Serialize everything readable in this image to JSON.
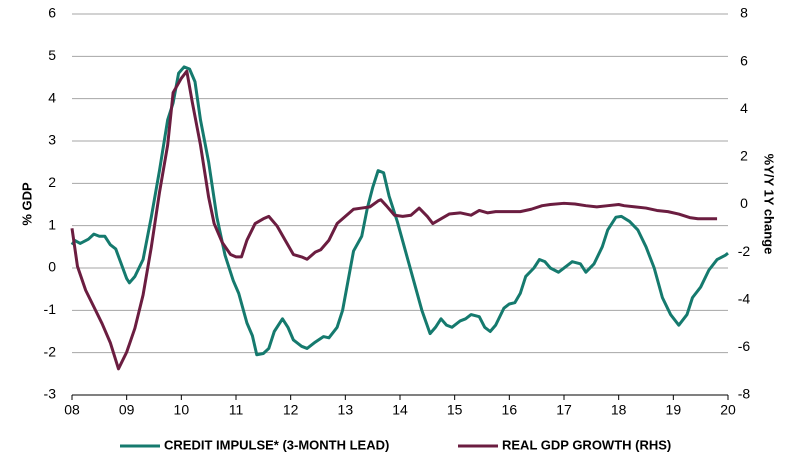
{
  "chart_data": {
    "type": "line",
    "ylabel": "% GDP",
    "y2label": "%Y/Y 1Y change",
    "xlim": [
      2008,
      2020
    ],
    "xticks": [
      {
        "value": 2008,
        "label": "08"
      },
      {
        "value": 2009,
        "label": "09"
      },
      {
        "value": 2010,
        "label": "10"
      },
      {
        "value": 2011,
        "label": "11"
      },
      {
        "value": 2012,
        "label": "12"
      },
      {
        "value": 2013,
        "label": "13"
      },
      {
        "value": 2014,
        "label": "14"
      },
      {
        "value": 2015,
        "label": "15"
      },
      {
        "value": 2016,
        "label": "16"
      },
      {
        "value": 2017,
        "label": "17"
      },
      {
        "value": 2018,
        "label": "18"
      },
      {
        "value": 2019,
        "label": "19"
      },
      {
        "value": 2020,
        "label": "20"
      }
    ],
    "ylim": [
      -3,
      6
    ],
    "yticks": [
      -3,
      -2,
      -1,
      0,
      1,
      2,
      3,
      4,
      5,
      6
    ],
    "y2lim": [
      -8,
      8
    ],
    "y2ticks": [
      -8,
      -6,
      -4,
      -2,
      0,
      2,
      4,
      6,
      8
    ],
    "grid": true,
    "legend": "bottom",
    "series": [
      {
        "name": "CREDIT IMPULSE* (3-MONTH LEAD)",
        "color": "#157a6e",
        "axis": "y",
        "x": [
          2008.0,
          2008.05,
          2008.15,
          2008.3,
          2008.4,
          2008.5,
          2008.6,
          2008.7,
          2008.8,
          2008.9,
          2009.0,
          2009.05,
          2009.15,
          2009.3,
          2009.45,
          2009.6,
          2009.75,
          2009.85,
          2009.95,
          2010.05,
          2010.15,
          2010.25,
          2010.35,
          2010.5,
          2010.65,
          2010.8,
          2010.95,
          2011.05,
          2011.2,
          2011.3,
          2011.38,
          2011.5,
          2011.6,
          2011.7,
          2011.85,
          2011.95,
          2012.05,
          2012.2,
          2012.3,
          2012.45,
          2012.6,
          2012.7,
          2012.85,
          2012.95,
          2013.05,
          2013.15,
          2013.3,
          2013.4,
          2013.5,
          2013.6,
          2013.7,
          2013.8,
          2013.95,
          2014.1,
          2014.25,
          2014.4,
          2014.55,
          2014.65,
          2014.75,
          2014.85,
          2014.95,
          2015.1,
          2015.2,
          2015.3,
          2015.45,
          2015.55,
          2015.65,
          2015.75,
          2015.9,
          2016.0,
          2016.1,
          2016.2,
          2016.3,
          2016.45,
          2016.55,
          2016.65,
          2016.75,
          2016.9,
          2017.05,
          2017.15,
          2017.3,
          2017.4,
          2017.55,
          2017.7,
          2017.8,
          2017.95,
          2018.05,
          2018.2,
          2018.35,
          2018.5,
          2018.65,
          2018.8,
          2018.95,
          2019.1,
          2019.25,
          2019.35,
          2019.5,
          2019.65,
          2019.8,
          2019.95,
          2020.0
        ],
        "values": [
          0.55,
          0.65,
          0.58,
          0.68,
          0.8,
          0.75,
          0.75,
          0.55,
          0.45,
          0.1,
          -0.25,
          -0.35,
          -0.2,
          0.2,
          1.2,
          2.3,
          3.5,
          3.9,
          4.6,
          4.75,
          4.7,
          4.4,
          3.5,
          2.5,
          1.2,
          0.3,
          -0.3,
          -0.6,
          -1.3,
          -1.6,
          -2.05,
          -2.02,
          -1.9,
          -1.5,
          -1.2,
          -1.4,
          -1.7,
          -1.85,
          -1.9,
          -1.75,
          -1.62,
          -1.65,
          -1.4,
          -1.0,
          -0.3,
          0.4,
          0.75,
          1.4,
          1.9,
          2.3,
          2.25,
          1.7,
          1.1,
          0.4,
          -0.3,
          -1.0,
          -1.55,
          -1.4,
          -1.2,
          -1.35,
          -1.4,
          -1.25,
          -1.2,
          -1.1,
          -1.15,
          -1.4,
          -1.5,
          -1.35,
          -0.95,
          -0.85,
          -0.82,
          -0.6,
          -0.2,
          0.0,
          0.2,
          0.15,
          0.0,
          -0.1,
          0.05,
          0.15,
          0.1,
          -0.1,
          0.1,
          0.5,
          0.9,
          1.2,
          1.22,
          1.1,
          0.9,
          0.5,
          0.0,
          -0.7,
          -1.1,
          -1.35,
          -1.1,
          -0.7,
          -0.45,
          -0.05,
          0.2,
          0.3,
          0.35
        ]
      },
      {
        "name": "REAL GDP GROWTH (RHS)",
        "color": "#6b1d40",
        "axis": "y2",
        "x": [
          2008.0,
          2008.1,
          2008.25,
          2008.4,
          2008.55,
          2008.7,
          2008.85,
          2009.0,
          2009.15,
          2009.3,
          2009.45,
          2009.6,
          2009.75,
          2009.85,
          2010.0,
          2010.1,
          2010.2,
          2010.35,
          2010.5,
          2010.6,
          2010.75,
          2010.9,
          2011.0,
          2011.1,
          2011.2,
          2011.35,
          2011.5,
          2011.6,
          2011.75,
          2011.9,
          2012.05,
          2012.2,
          2012.3,
          2012.45,
          2012.55,
          2012.7,
          2012.85,
          2013.0,
          2013.15,
          2013.3,
          2013.45,
          2013.6,
          2013.65,
          2013.75,
          2013.9,
          2014.05,
          2014.2,
          2014.35,
          2014.5,
          2014.6,
          2014.75,
          2014.9,
          2015.1,
          2015.3,
          2015.45,
          2015.6,
          2015.75,
          2016.0,
          2016.2,
          2016.4,
          2016.6,
          2016.75,
          2017.0,
          2017.2,
          2017.4,
          2017.6,
          2017.8,
          2018.0,
          2018.1,
          2018.3,
          2018.5,
          2018.7,
          2018.9,
          2019.1,
          2019.3,
          2019.45,
          2019.6,
          2019.8
        ],
        "values": [
          -1.0,
          -2.6,
          -3.6,
          -4.3,
          -5.0,
          -5.8,
          -6.9,
          -6.2,
          -5.2,
          -3.8,
          -1.8,
          0.5,
          2.5,
          4.7,
          5.3,
          5.6,
          4.3,
          2.5,
          0.3,
          -0.8,
          -1.6,
          -2.1,
          -2.2,
          -2.2,
          -1.5,
          -0.8,
          -0.6,
          -0.5,
          -0.9,
          -1.5,
          -2.1,
          -2.2,
          -2.3,
          -2.0,
          -1.9,
          -1.5,
          -0.8,
          -0.5,
          -0.2,
          -0.15,
          -0.1,
          0.15,
          0.2,
          -0.05,
          -0.45,
          -0.5,
          -0.45,
          -0.15,
          -0.5,
          -0.8,
          -0.6,
          -0.4,
          -0.35,
          -0.45,
          -0.25,
          -0.35,
          -0.3,
          -0.3,
          -0.3,
          -0.2,
          -0.05,
          0.0,
          0.05,
          0.02,
          -0.05,
          -0.1,
          -0.05,
          0.0,
          -0.05,
          -0.1,
          -0.15,
          -0.25,
          -0.3,
          -0.4,
          -0.55,
          -0.6,
          -0.6,
          -0.6
        ]
      }
    ]
  }
}
